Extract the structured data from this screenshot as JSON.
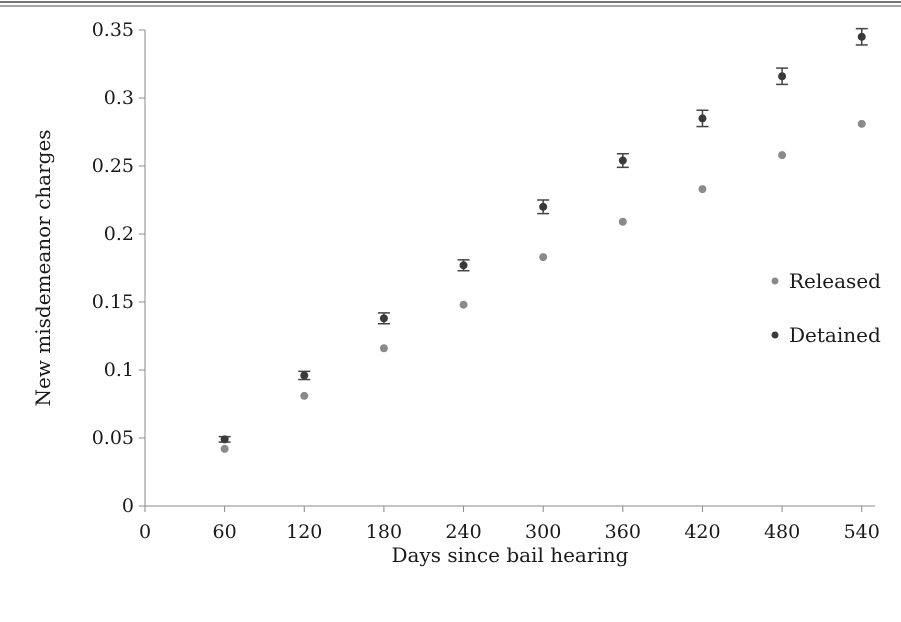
{
  "chart_data": {
    "type": "scatter",
    "xlabel": "Days since bail hearing",
    "ylabel": "New misdemeanor charges",
    "xlim": [
      0,
      550
    ],
    "ylim": [
      0,
      0.35
    ],
    "x_ticks": [
      0,
      60,
      120,
      180,
      240,
      300,
      360,
      420,
      480,
      540
    ],
    "x_tick_labels": [
      "0",
      "60",
      "120",
      "180",
      "240",
      "300",
      "360",
      "420",
      "480",
      "540"
    ],
    "y_ticks": [
      0,
      0.05,
      0.1,
      0.15,
      0.2,
      0.25,
      0.3,
      0.35
    ],
    "y_tick_labels": [
      "0",
      "0.05",
      "0.1",
      "0.15",
      "0.2",
      "0.25",
      "0.3",
      "0.35"
    ],
    "grid": false,
    "legend_position": "right",
    "series": [
      {
        "name": "Released",
        "color": "#8a8a8a",
        "x": [
          60,
          120,
          180,
          240,
          300,
          360,
          420,
          480,
          540
        ],
        "y": [
          0.042,
          0.081,
          0.116,
          0.148,
          0.183,
          0.209,
          0.233,
          0.258,
          0.281
        ]
      },
      {
        "name": "Detained",
        "color": "#3a3a3a",
        "x": [
          60,
          120,
          180,
          240,
          300,
          360,
          420,
          480,
          540
        ],
        "y": [
          0.049,
          0.096,
          0.138,
          0.177,
          0.22,
          0.254,
          0.285,
          0.316,
          0.345
        ],
        "error": [
          0.002,
          0.003,
          0.004,
          0.004,
          0.005,
          0.005,
          0.006,
          0.006,
          0.006
        ]
      }
    ]
  }
}
